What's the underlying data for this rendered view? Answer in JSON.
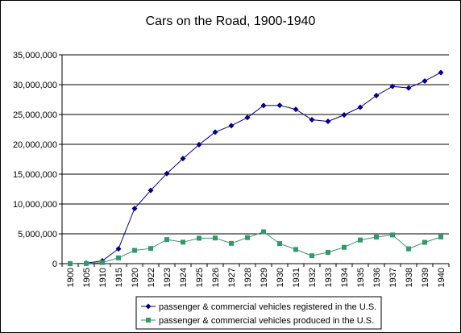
{
  "chart_data": {
    "type": "line",
    "title": "Cars on the Road, 1900-1940",
    "xlabel": "",
    "ylabel": "",
    "categories": [
      "1900",
      "1905",
      "1910",
      "1915",
      "1920",
      "1922",
      "1923",
      "1924",
      "1925",
      "1926",
      "1927",
      "1928",
      "1929",
      "1930",
      "1931",
      "1932",
      "1933",
      "1934",
      "1935",
      "1936",
      "1937",
      "1938",
      "1939",
      "1940"
    ],
    "ylim": [
      0,
      35000000
    ],
    "yticks": [
      0,
      5000000,
      10000000,
      15000000,
      20000000,
      25000000,
      30000000,
      35000000
    ],
    "ytick_labels": [
      "0",
      "5,000,000",
      "10,000,000",
      "15,000,000",
      "20,000,000",
      "25,000,000",
      "30,000,000",
      "35,000,000"
    ],
    "grid": "horizontal",
    "legend_position": "bottom",
    "series": [
      {
        "name": "passenger & commercial vehicles registered in the U.S.",
        "color": "#000080",
        "marker": "diamond",
        "values": [
          8000,
          78000,
          468000,
          2490000,
          9239000,
          12274000,
          15102000,
          17613000,
          19941000,
          22052000,
          23133000,
          24493000,
          26501000,
          26532000,
          25862000,
          24115000,
          23843000,
          24933000,
          26221000,
          28172000,
          29706000,
          29443000,
          30615000,
          32035000
        ]
      },
      {
        "name": "passenger & commercial vehicles produced in the U.S.",
        "color": "#339966",
        "marker": "square",
        "values": [
          4000,
          25000,
          187000,
          969000,
          2227000,
          2544000,
          4034000,
          3603000,
          4266000,
          4301000,
          3401000,
          4359000,
          5337000,
          3363000,
          2380000,
          1332000,
          1890000,
          2737000,
          3971000,
          4454000,
          4809000,
          2489000,
          3577000,
          4472000
        ]
      }
    ]
  }
}
